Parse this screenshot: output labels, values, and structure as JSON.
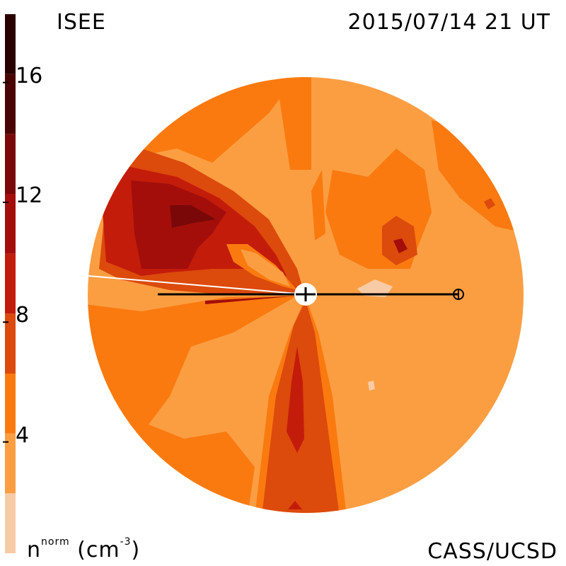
{
  "header": {
    "observatory": "ISEE",
    "timestamp": "2015/07/14 21 UT",
    "credit": "CASS/UCSD"
  },
  "colorbar": {
    "quantity": "n",
    "superscript_norm": "norm",
    "unit_open": "(cm",
    "unit_sup": "-3",
    "unit_close": ")",
    "ticks": [
      "16",
      "12",
      "8",
      "4"
    ],
    "range": [
      0,
      18
    ],
    "levels": [
      {
        "from": 0,
        "to": 2,
        "color": "#f7cba5"
      },
      {
        "from": 2,
        "to": 4,
        "color": "#fb9e42"
      },
      {
        "from": 4,
        "to": 6,
        "color": "#fa7a0f"
      },
      {
        "from": 6,
        "to": 8,
        "color": "#dc4a0c"
      },
      {
        "from": 8,
        "to": 10,
        "color": "#c41c0a"
      },
      {
        "from": 10,
        "to": 12,
        "color": "#a30e0b"
      },
      {
        "from": 12,
        "to": 14,
        "color": "#7a0808"
      },
      {
        "from": 14,
        "to": 16,
        "color": "#4a0404"
      },
      {
        "from": 16,
        "to": 18,
        "color": "#2a0000"
      }
    ]
  },
  "chart_data": {
    "type": "heatmap",
    "description_of_axes": "",
    "sun_earth_line": {
      "center": "Sun",
      "target": "Earth"
    },
    "colors": {
      "background": "#ffffff",
      "line": "#000000"
    }
  }
}
